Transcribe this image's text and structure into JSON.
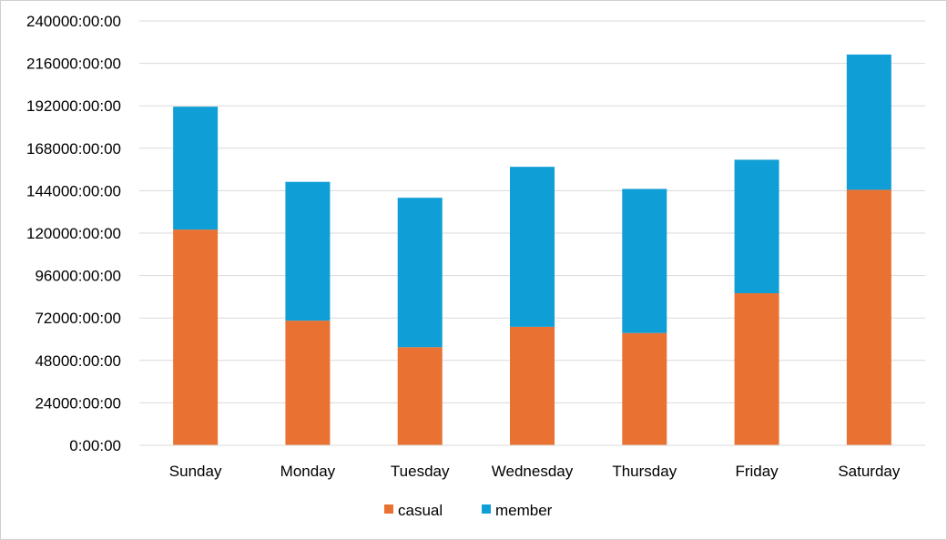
{
  "chart_data": {
    "type": "bar",
    "stacked": true,
    "title": "",
    "xlabel": "",
    "ylabel": "",
    "categories": [
      "Sunday",
      "Monday",
      "Tuesday",
      "Wednesday",
      "Thursday",
      "Friday",
      "Saturday"
    ],
    "series": [
      {
        "name": "casual",
        "color": "#E97132",
        "values": [
          122000,
          70500,
          55500,
          67000,
          63500,
          86000,
          144500
        ]
      },
      {
        "name": "member",
        "color": "#0F9ED5",
        "values": [
          69500,
          78500,
          84500,
          90500,
          81500,
          75500,
          76500
        ]
      }
    ],
    "ylim": [
      0,
      240000
    ],
    "yticks": [
      0,
      24000,
      48000,
      72000,
      96000,
      120000,
      144000,
      168000,
      192000,
      216000,
      240000
    ],
    "ytick_labels": [
      "0:00:00",
      "24000:00:00",
      "48000:00:00",
      "72000:00:00",
      "96000:00:00",
      "120000:00:00",
      "144000:00:00",
      "168000:00:00",
      "192000:00:00",
      "216000:00:00",
      "240000:00:00"
    ],
    "grid": true,
    "legend_position": "bottom"
  }
}
